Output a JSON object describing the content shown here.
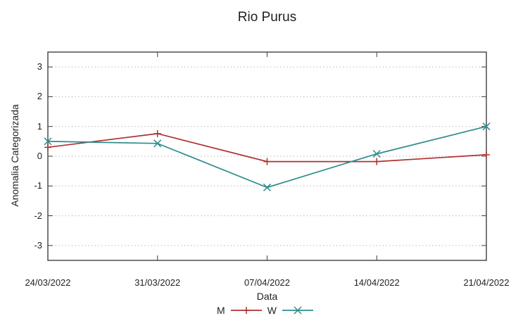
{
  "title": "Rio Purus",
  "chart_data": {
    "type": "line",
    "title": "Rio Purus",
    "xlabel": "Data",
    "ylabel": "Anomalia Categorizada",
    "x": [
      "24/03/2022",
      "31/03/2022",
      "07/04/2022",
      "14/04/2022",
      "21/04/2022"
    ],
    "series": [
      {
        "name": "M",
        "color": "#b03030",
        "marker": "plus",
        "values": [
          0.3,
          0.76,
          -0.18,
          -0.18,
          0.05
        ]
      },
      {
        "name": "W",
        "color": "#2e8b8b",
        "marker": "cross",
        "values": [
          0.5,
          0.43,
          -1.05,
          0.08,
          1.0
        ]
      }
    ],
    "ylim": [
      -3.5,
      3.5
    ],
    "yticks": [
      -3,
      -2,
      -1,
      0,
      1,
      2,
      3
    ],
    "grid": "dotted-horizontal",
    "legend_position": "bottom-center",
    "colors": {
      "grid": "#b8b8b8",
      "border": "#4d4d4d",
      "text": "#1f1f1f"
    }
  }
}
